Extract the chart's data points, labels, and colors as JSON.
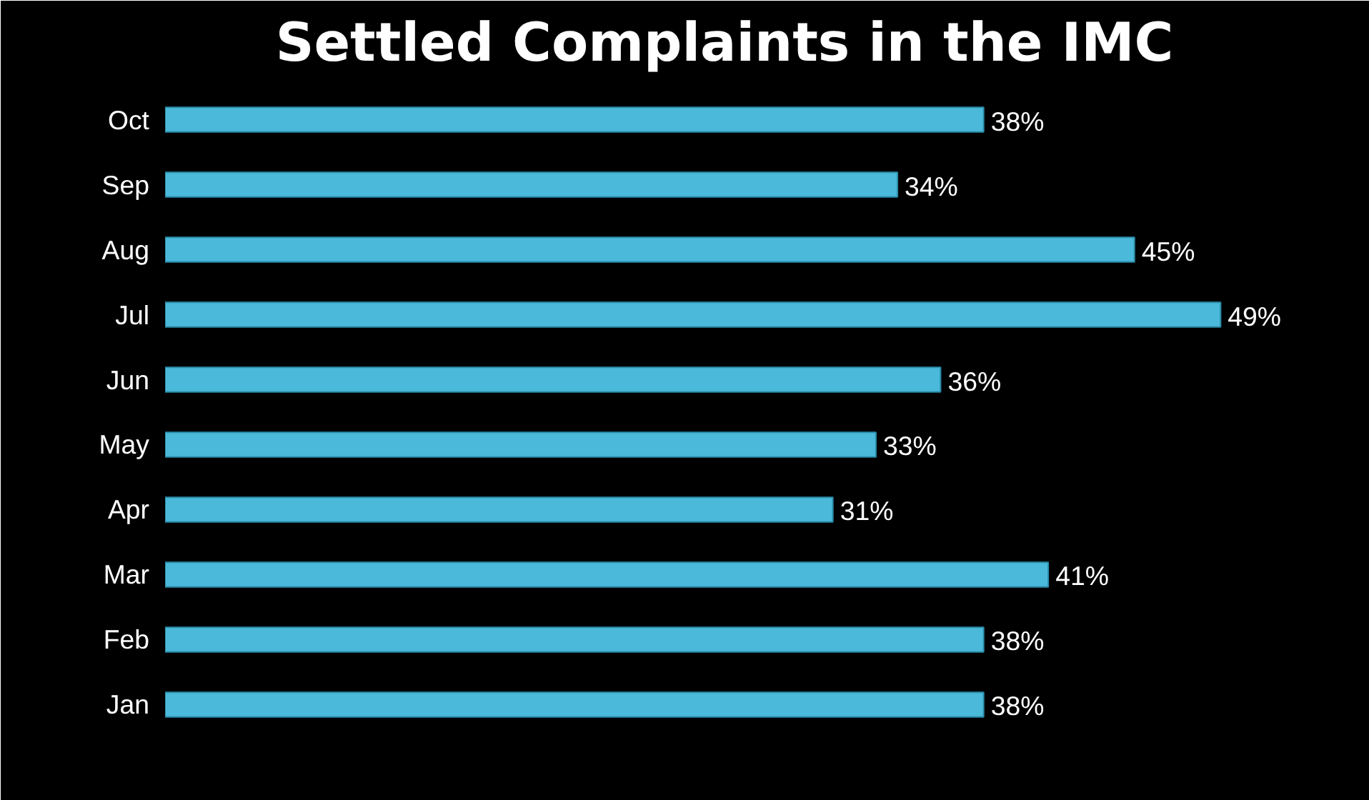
{
  "chart_data": {
    "type": "bar",
    "orientation": "horizontal",
    "title": "Settled Complaints in the IMC",
    "categories": [
      "Oct",
      "Sep",
      "Aug",
      "Jul",
      "Jun",
      "May",
      "Apr",
      "Mar",
      "Feb",
      "Jan"
    ],
    "values": [
      38,
      34,
      45,
      49,
      36,
      33,
      31,
      41,
      38,
      38
    ],
    "value_labels": [
      "38%",
      "34%",
      "45%",
      "49%",
      "36%",
      "33%",
      "31%",
      "41%",
      "38%",
      "38%"
    ],
    "color": "#4bb9d9",
    "tick_labels": "y"
  }
}
